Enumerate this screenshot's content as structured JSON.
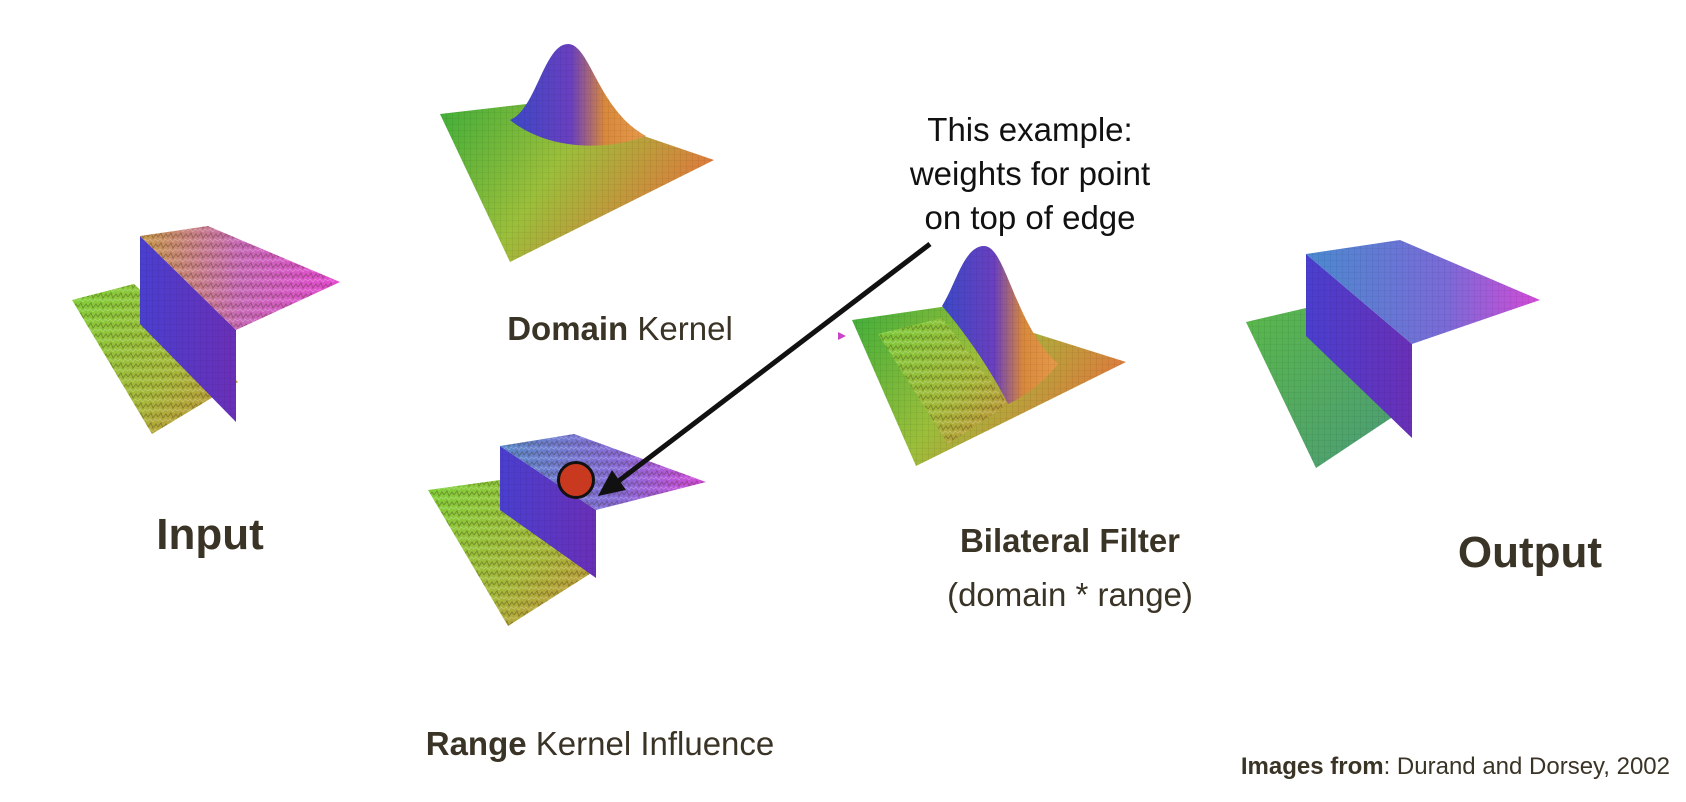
{
  "labels": {
    "input": "Input",
    "domain_bold": "Domain",
    "domain_rest": " Kernel",
    "range_bold": "Range",
    "range_rest": " Kernel Influence",
    "bilateral_title": "Bilateral Filter",
    "bilateral_sub": "(domain * range)",
    "output": "Output"
  },
  "callout": {
    "line1": "This example:",
    "line2": "weights for point",
    "line3": "on top of edge"
  },
  "credit": {
    "bold": "Images from",
    "rest": ": Durand and Dorsey, 2002"
  },
  "colors": {
    "text": "#3a3427",
    "marker": "#c8391f",
    "green": "#5fbf3a",
    "blue": "#4b3fc8",
    "orange": "#e08a3c",
    "magenta": "#d84ad8"
  }
}
